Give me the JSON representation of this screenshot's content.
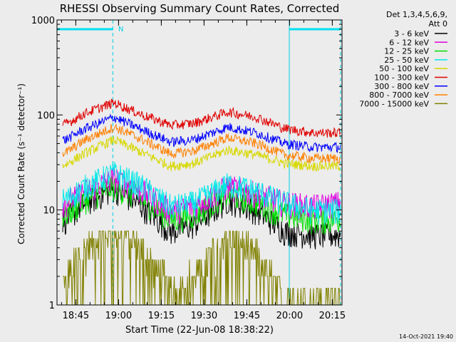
{
  "chart_data": {
    "type": "line",
    "title": "RHESSI Observing Summary Count Rates, Corrected",
    "xlabel": "Start Time (22-Jun-08 18:38:22)",
    "ylabel": "Corrected Count Rate (s⁻¹ detector⁻¹)",
    "yscale": "log",
    "ylim": [
      1,
      1000
    ],
    "xlim_minutes": [
      0,
      100
    ],
    "xticks": [
      "18:45",
      "19:00",
      "19:15",
      "19:30",
      "19:45",
      "20:00",
      "20:15"
    ],
    "xtick_minutes": [
      6.6,
      21.6,
      36.6,
      51.6,
      66.6,
      81.6,
      96.6
    ],
    "yticks": [
      "1",
      "10",
      "100",
      "1000"
    ],
    "ytick_values": [
      1,
      10,
      100,
      1000
    ],
    "grid": false,
    "legend_header": [
      "Det 1,3,4,5,6,9,",
      "Att 0"
    ],
    "legend_placement": "right",
    "annotations": [
      {
        "text": "N",
        "x_minute": 20
      }
    ],
    "footer": "14-Oct-2021 19:40",
    "night_bars": [
      [
        0,
        19.6
      ],
      [
        81.5,
        99.5
      ]
    ],
    "saa_lines_minutes": [
      0,
      19.6,
      81.5,
      99.5
    ],
    "series": [
      {
        "name": "3 - 6 keV",
        "color": "#000000",
        "x": [
          3,
          10,
          20,
          30,
          40,
          48,
          60,
          70,
          80,
          90,
          99
        ],
        "values": [
          8,
          12,
          17,
          11,
          6,
          7,
          13,
          10,
          6,
          5.5,
          5.5
        ]
      },
      {
        "name": "6 - 12 keV",
        "color": "#e000e0",
        "x": [
          3,
          10,
          20,
          30,
          40,
          48,
          60,
          70,
          80,
          90,
          99
        ],
        "values": [
          12,
          16,
          22,
          16,
          10,
          11,
          18,
          15,
          12,
          11,
          12
        ]
      },
      {
        "name": "12 - 25 keV",
        "color": "#00e000",
        "x": [
          3,
          10,
          20,
          30,
          40,
          48,
          60,
          70,
          80,
          90,
          99
        ],
        "values": [
          9,
          13,
          18,
          13,
          8,
          9,
          15,
          12,
          9,
          8,
          8
        ]
      },
      {
        "name": "25 - 50 keV",
        "color": "#00e8e8",
        "x": [
          3,
          10,
          20,
          30,
          40,
          48,
          60,
          70,
          80,
          90,
          99
        ],
        "values": [
          13,
          18,
          25,
          18,
          11,
          12,
          19,
          16,
          12,
          10,
          10
        ]
      },
      {
        "name": "50 - 100 keV",
        "color": "#d8d800",
        "x": [
          3,
          10,
          20,
          30,
          40,
          48,
          60,
          70,
          80,
          90,
          99
        ],
        "values": [
          30,
          40,
          55,
          40,
          29,
          31,
          43,
          38,
          31,
          29,
          29
        ]
      },
      {
        "name": "100 - 300 keV",
        "color": "#e00000",
        "x": [
          3,
          10,
          20,
          30,
          40,
          48,
          60,
          70,
          80,
          90,
          99
        ],
        "values": [
          80,
          105,
          135,
          100,
          78,
          82,
          108,
          95,
          72,
          65,
          65
        ]
      },
      {
        "name": "300 - 800 keV",
        "color": "#0000ff",
        "x": [
          3,
          10,
          20,
          30,
          40,
          48,
          60,
          70,
          80,
          90,
          99
        ],
        "values": [
          55,
          72,
          95,
          70,
          52,
          55,
          75,
          65,
          50,
          46,
          46
        ]
      },
      {
        "name": "800 - 7000 keV",
        "color": "#ff8000",
        "x": [
          3,
          10,
          20,
          30,
          40,
          48,
          60,
          70,
          80,
          90,
          99
        ],
        "values": [
          40,
          55,
          75,
          55,
          39,
          42,
          58,
          50,
          38,
          35,
          35
        ]
      },
      {
        "name": "7000 - 15000 keV",
        "color": "#808000",
        "x": [
          3,
          10,
          20,
          30,
          40,
          48,
          60,
          70,
          80,
          90,
          99
        ],
        "values": [
          2,
          4,
          6.5,
          4,
          1.5,
          2,
          6,
          3.5,
          1.3,
          1.2,
          1.3
        ]
      }
    ]
  }
}
